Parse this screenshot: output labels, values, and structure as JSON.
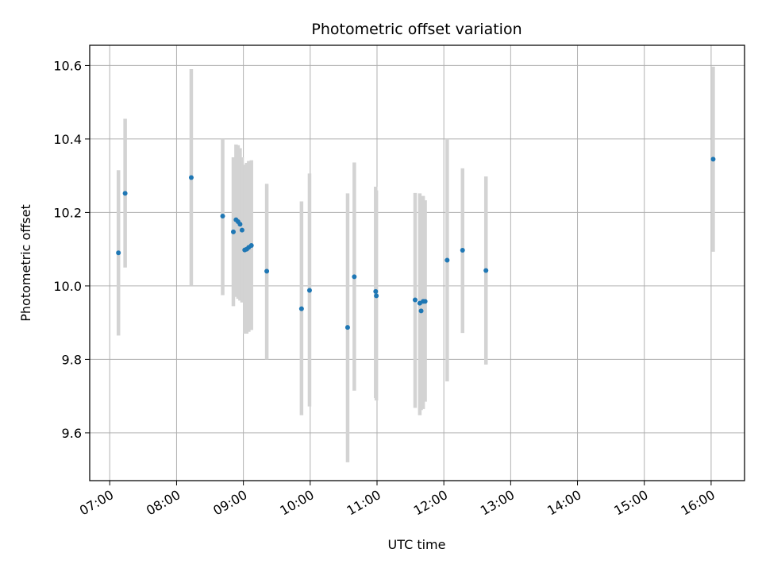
{
  "chart_data": {
    "type": "scatter",
    "title": "Photometric offset variation",
    "xlabel": "UTC time",
    "ylabel": "Photometric offset",
    "x_unit": "hours",
    "xlim": [
      6.7,
      16.5
    ],
    "ylim": [
      9.47,
      10.655
    ],
    "x_ticks": [
      7,
      8,
      9,
      10,
      11,
      12,
      13,
      14,
      15,
      16
    ],
    "x_tick_labels": [
      "07:00",
      "08:00",
      "09:00",
      "10:00",
      "11:00",
      "12:00",
      "13:00",
      "14:00",
      "15:00",
      "16:00"
    ],
    "y_ticks": [
      9.6,
      9.8,
      10.0,
      10.2,
      10.4,
      10.6
    ],
    "y_tick_labels": [
      "9.6",
      "9.8",
      "10.0",
      "10.2",
      "10.4",
      "10.6"
    ],
    "grid": true,
    "point_color": "#1f77b4",
    "errorbar_color": "#d3d3d3",
    "points": [
      {
        "x": 7.13,
        "y": 10.09,
        "lo": 9.865,
        "hi": 10.315
      },
      {
        "x": 7.23,
        "y": 10.252,
        "lo": 10.05,
        "hi": 10.455
      },
      {
        "x": 8.22,
        "y": 10.295,
        "lo": 10.0,
        "hi": 10.59
      },
      {
        "x": 8.69,
        "y": 10.19,
        "lo": 9.975,
        "hi": 10.4
      },
      {
        "x": 8.85,
        "y": 10.147,
        "lo": 9.945,
        "hi": 10.35
      },
      {
        "x": 8.89,
        "y": 10.18,
        "lo": 9.97,
        "hi": 10.385
      },
      {
        "x": 8.92,
        "y": 10.175,
        "lo": 9.965,
        "hi": 10.383
      },
      {
        "x": 8.95,
        "y": 10.168,
        "lo": 9.96,
        "hi": 10.375
      },
      {
        "x": 8.98,
        "y": 10.152,
        "lo": 9.955,
        "hi": 10.35
      },
      {
        "x": 9.02,
        "y": 10.098,
        "lo": 9.87,
        "hi": 10.33
      },
      {
        "x": 9.05,
        "y": 10.1,
        "lo": 9.87,
        "hi": 10.335
      },
      {
        "x": 9.08,
        "y": 10.105,
        "lo": 9.875,
        "hi": 10.34
      },
      {
        "x": 9.12,
        "y": 10.11,
        "lo": 9.88,
        "hi": 10.342
      },
      {
        "x": 9.35,
        "y": 10.04,
        "lo": 9.8,
        "hi": 10.278
      },
      {
        "x": 9.87,
        "y": 9.938,
        "lo": 9.648,
        "hi": 10.23
      },
      {
        "x": 9.99,
        "y": 9.988,
        "lo": 9.672,
        "hi": 10.306
      },
      {
        "x": 10.56,
        "y": 9.887,
        "lo": 9.52,
        "hi": 10.252
      },
      {
        "x": 10.66,
        "y": 10.025,
        "lo": 9.715,
        "hi": 10.336
      },
      {
        "x": 10.98,
        "y": 9.985,
        "lo": 9.695,
        "hi": 10.27
      },
      {
        "x": 10.99,
        "y": 9.973,
        "lo": 9.688,
        "hi": 10.26
      },
      {
        "x": 11.57,
        "y": 9.962,
        "lo": 9.668,
        "hi": 10.253
      },
      {
        "x": 11.64,
        "y": 9.953,
        "lo": 9.648,
        "hi": 10.252
      },
      {
        "x": 11.66,
        "y": 9.932,
        "lo": 9.662,
        "hi": 10.24
      },
      {
        "x": 11.69,
        "y": 9.958,
        "lo": 9.665,
        "hi": 10.245
      },
      {
        "x": 11.72,
        "y": 9.958,
        "lo": 9.685,
        "hi": 10.233
      },
      {
        "x": 12.05,
        "y": 10.07,
        "lo": 9.74,
        "hi": 10.4
      },
      {
        "x": 12.28,
        "y": 10.097,
        "lo": 9.872,
        "hi": 10.32
      },
      {
        "x": 12.63,
        "y": 10.042,
        "lo": 9.786,
        "hi": 10.298
      },
      {
        "x": 16.03,
        "y": 10.345,
        "lo": 10.093,
        "hi": 10.597
      }
    ]
  }
}
